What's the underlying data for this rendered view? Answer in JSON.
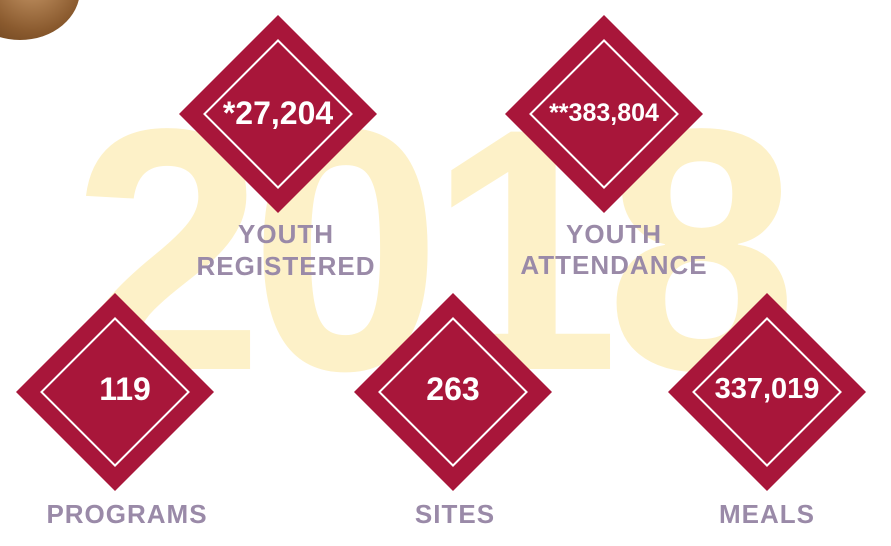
{
  "year": "2018",
  "stats": {
    "youth_registered": {
      "value": "*27,204",
      "label_line1": "YOUTH",
      "label_line2": "REGISTERED"
    },
    "youth_attendance": {
      "value": "**383,804",
      "label_line1": "YOUTH",
      "label_line2": "ATTENDANCE"
    },
    "programs": {
      "value": "119",
      "label": "PROGRAMS"
    },
    "sites": {
      "value": "263",
      "label": "SITES"
    },
    "meals": {
      "value": "337,019",
      "label": "MEALS"
    }
  },
  "colors": {
    "diamond": "#a8163a",
    "label": "#9a8aa8",
    "year": "#fdf1c8"
  }
}
